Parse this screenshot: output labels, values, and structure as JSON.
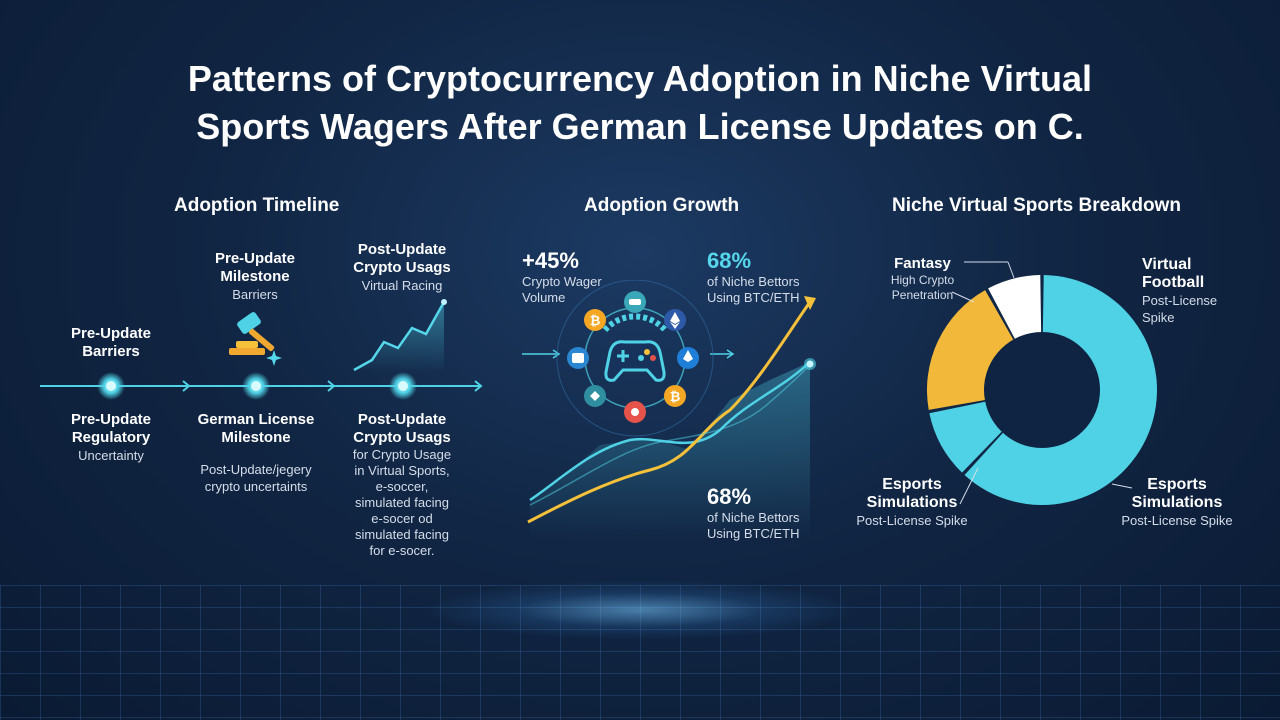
{
  "title": {
    "line1": "Patterns of Cryptocurrency Adoption in Niche Virtual",
    "line2": "Sports Wagers After German License Updates on C."
  },
  "timeline": {
    "heading": "Adoption Timeline",
    "top_left": {
      "title1": "Pre-Update",
      "title2": "Barriers"
    },
    "top_mid": {
      "title1": "Pre-Update",
      "title2": "Milestone",
      "sub": "Barriers"
    },
    "top_right": {
      "title1": "Post-Update",
      "title2": "Crypto Usags",
      "sub": "Virtual Racing"
    },
    "bottom_left": {
      "title1": "Pre-Update",
      "title2": "Regulatory",
      "sub": "Uncertainty"
    },
    "bottom_mid": {
      "title1": "German License",
      "title2": "Milestone",
      "sub1": "Post-Update/jegery",
      "sub2": "crypto uncertaints"
    },
    "bottom_right": {
      "title1": "Post-Update",
      "title2": "Crypto Usags",
      "lines": [
        "for Crypto Usage",
        "in Virtual Sports,",
        "e-soccer,",
        "simulated facing",
        "e-socer od",
        "simulated facing",
        "for e-socer."
      ]
    },
    "icons": [
      "gavel-icon",
      "sparkle-icon"
    ]
  },
  "growth": {
    "heading": "Adoption Growth",
    "stat1": {
      "value": "+45%",
      "label": "Crypto Wager Volume"
    },
    "stat2": {
      "value": "68%",
      "label1": "of Niche Bettors",
      "label2": "Using BTC/ETH"
    },
    "stat3": {
      "value": "68%",
      "label1": "of Niche Bettors",
      "label2": "Using BTC/ETH"
    },
    "icons": [
      "bitcoin-icon",
      "ethereum-icon",
      "gamepad-icon",
      "wallet-icon",
      "chip-icon"
    ],
    "colors": {
      "yellow": "#f5c03a",
      "cyan": "#4fd2e6"
    }
  },
  "breakdown": {
    "heading": "Niche Virtual Sports Breakdown",
    "fantasy": {
      "title": "Fantasy",
      "sub1": "High Crypto",
      "sub2": "Penetration"
    },
    "football": {
      "title1": "Virtual",
      "title2": "Football",
      "sub1": "Post-License",
      "sub2": "Spike"
    },
    "esports_left": {
      "title1": "Esports",
      "title2": "Simulations",
      "sub": "Post-License Spike"
    },
    "esports_right": {
      "title1": "Esports",
      "title2": "Simulations",
      "sub": "Post-License Spike"
    },
    "colors": {
      "cyan": "#4fd2e6",
      "yellow": "#f2b83a",
      "white": "#ffffff"
    }
  },
  "chart_data": {
    "type": "pie",
    "categories": [
      "Virtual Football",
      "Esports Simulations",
      "Esports Simulations",
      "Fantasy"
    ],
    "values": [
      62,
      10,
      20,
      8
    ]
  }
}
